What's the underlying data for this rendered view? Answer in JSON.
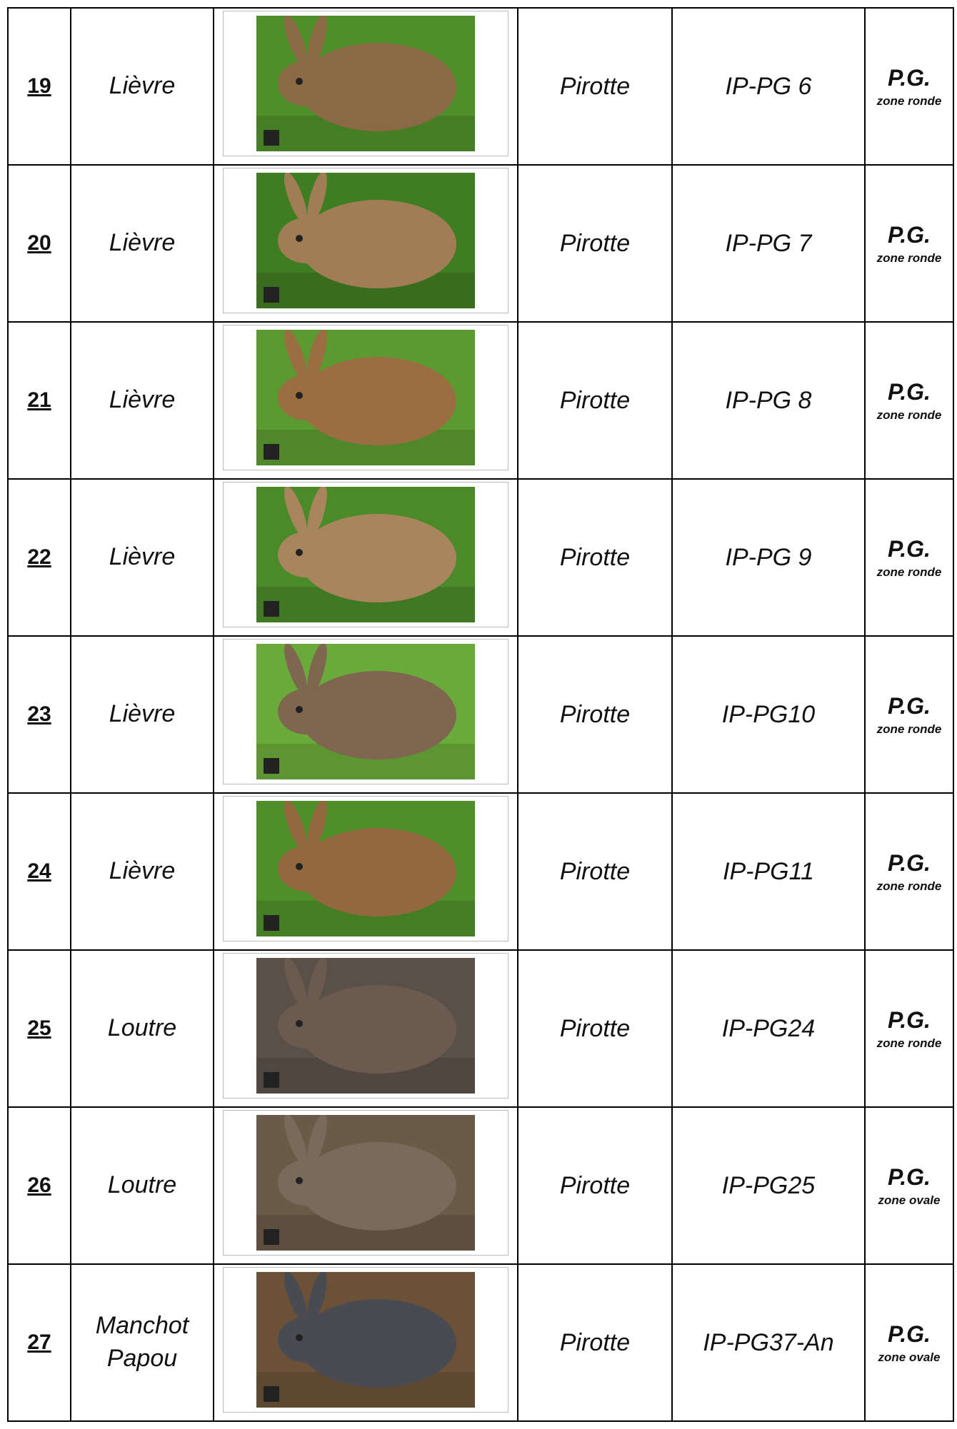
{
  "table": {
    "rows": [
      [
        "19",
        "Lièvre",
        "Pirotte",
        "IP-PG 6",
        "P.G.",
        "zone ronde"
      ],
      [
        "20",
        "Lièvre",
        "Pirotte",
        "IP-PG 7",
        "P.G.",
        "zone ronde"
      ],
      [
        "21",
        "Lièvre",
        "Pirotte",
        "IP-PG 8",
        "P.G.",
        "zone ronde"
      ],
      [
        "22",
        "Lièvre",
        "Pirotte",
        "IP-PG 9",
        "P.G.",
        "zone ronde"
      ],
      [
        "23",
        "Lièvre",
        "Pirotte",
        "IP-PG10",
        "P.G.",
        "zone ronde"
      ],
      [
        "24",
        "Lièvre",
        "Pirotte",
        "IP-PG11",
        "P.G.",
        "zone ronde"
      ],
      [
        "25",
        "Loutre",
        "Pirotte",
        "IP-PG24",
        "P.G.",
        "zone ronde"
      ],
      [
        "26",
        "Loutre",
        "Pirotte",
        "IP-PG25",
        "P.G.",
        "zone ovale"
      ],
      [
        "27",
        "Manchot Papou",
        "Pirotte",
        "IP-PG37-An",
        "P.G.",
        "zone ovale"
      ]
    ]
  }
}
